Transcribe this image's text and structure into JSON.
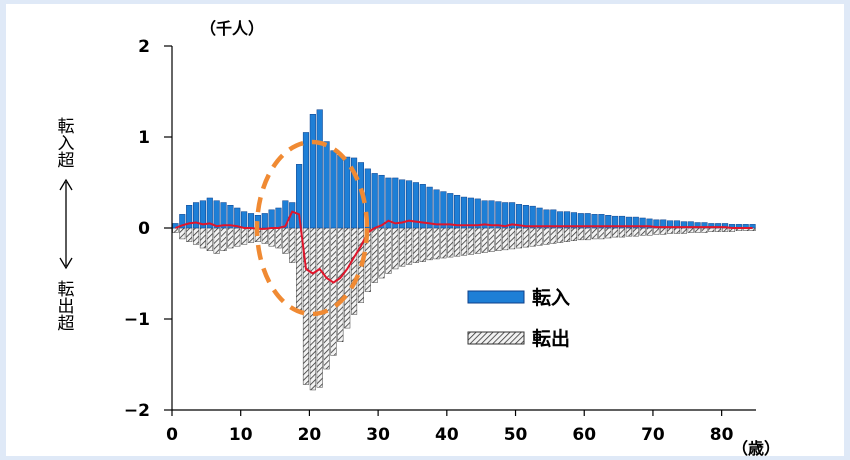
{
  "chart_data": {
    "type": "bar",
    "y_unit": "（千人）",
    "x_unit": "（歳）",
    "ylim": [
      -2,
      2
    ],
    "xlim": [
      0,
      85
    ],
    "y_ticks": [
      "2",
      "1",
      "0",
      "−1",
      "−2"
    ],
    "x_ticks": [
      "0",
      "10",
      "20",
      "30",
      "40",
      "50",
      "60",
      "70",
      "80"
    ],
    "side_label_top": [
      "転",
      "入",
      "超"
    ],
    "side_label_bottom": [
      "転",
      "出",
      "超"
    ],
    "legend": [
      {
        "label": "転入",
        "color": "#1e7fd6"
      },
      {
        "label": "転出",
        "color": "#d0d0d0"
      }
    ],
    "ages": [
      0,
      1,
      2,
      3,
      4,
      5,
      6,
      7,
      8,
      9,
      10,
      11,
      12,
      13,
      14,
      15,
      16,
      17,
      18,
      19,
      20,
      21,
      22,
      23,
      24,
      25,
      26,
      27,
      28,
      29,
      30,
      31,
      32,
      33,
      34,
      35,
      36,
      37,
      38,
      39,
      40,
      41,
      42,
      43,
      44,
      45,
      46,
      47,
      48,
      49,
      50,
      51,
      52,
      53,
      54,
      55,
      56,
      57,
      58,
      59,
      60,
      61,
      62,
      63,
      64,
      65,
      66,
      67,
      68,
      69,
      70,
      71,
      72,
      73,
      74,
      75,
      76,
      77,
      78,
      79,
      80,
      81,
      82,
      83,
      84
    ],
    "series": [
      {
        "name": "転入",
        "values": [
          0.05,
          0.15,
          0.25,
          0.28,
          0.3,
          0.33,
          0.3,
          0.28,
          0.25,
          0.22,
          0.18,
          0.16,
          0.14,
          0.16,
          0.2,
          0.22,
          0.3,
          0.28,
          0.7,
          1.05,
          1.25,
          1.3,
          0.95,
          0.85,
          0.8,
          0.78,
          0.77,
          0.72,
          0.65,
          0.6,
          0.58,
          0.55,
          0.55,
          0.53,
          0.52,
          0.5,
          0.48,
          0.45,
          0.42,
          0.4,
          0.38,
          0.36,
          0.34,
          0.33,
          0.32,
          0.3,
          0.3,
          0.29,
          0.28,
          0.28,
          0.26,
          0.25,
          0.24,
          0.22,
          0.2,
          0.2,
          0.18,
          0.18,
          0.17,
          0.16,
          0.16,
          0.15,
          0.15,
          0.14,
          0.13,
          0.13,
          0.12,
          0.12,
          0.11,
          0.1,
          0.09,
          0.09,
          0.08,
          0.08,
          0.07,
          0.07,
          0.06,
          0.06,
          0.05,
          0.05,
          0.05,
          0.04,
          0.04,
          0.04,
          0.04
        ]
      },
      {
        "name": "転出",
        "values": [
          -0.05,
          -0.12,
          -0.15,
          -0.18,
          -0.22,
          -0.25,
          -0.28,
          -0.25,
          -0.22,
          -0.2,
          -0.18,
          -0.16,
          -0.15,
          -0.17,
          -0.2,
          -0.22,
          -0.28,
          -0.38,
          -0.9,
          -1.72,
          -1.78,
          -1.75,
          -1.55,
          -1.4,
          -1.25,
          -1.1,
          -0.95,
          -0.82,
          -0.7,
          -0.6,
          -0.55,
          -0.5,
          -0.45,
          -0.42,
          -0.4,
          -0.38,
          -0.37,
          -0.35,
          -0.34,
          -0.33,
          -0.32,
          -0.31,
          -0.3,
          -0.29,
          -0.28,
          -0.27,
          -0.26,
          -0.25,
          -0.24,
          -0.23,
          -0.22,
          -0.21,
          -0.2,
          -0.19,
          -0.18,
          -0.17,
          -0.16,
          -0.15,
          -0.14,
          -0.13,
          -0.13,
          -0.12,
          -0.12,
          -0.11,
          -0.1,
          -0.1,
          -0.09,
          -0.09,
          -0.08,
          -0.08,
          -0.07,
          -0.07,
          -0.06,
          -0.06,
          -0.06,
          -0.05,
          -0.05,
          -0.05,
          -0.04,
          -0.04,
          -0.04,
          -0.04,
          -0.03,
          -0.03,
          -0.03
        ]
      },
      {
        "name": "net",
        "values": [
          0,
          0.03,
          0.05,
          0.06,
          0.04,
          0.05,
          0.02,
          0.03,
          0.03,
          0.02,
          0,
          0,
          -0.01,
          -0.01,
          0,
          0,
          0.02,
          0.18,
          0.15,
          -0.45,
          -0.5,
          -0.45,
          -0.55,
          -0.6,
          -0.55,
          -0.45,
          -0.32,
          -0.2,
          -0.05,
          0,
          0.03,
          0.08,
          0.05,
          0.06,
          0.08,
          0.07,
          0.06,
          0.05,
          0.04,
          0.04,
          0.04,
          0.03,
          0.03,
          0.03,
          0.03,
          0.04,
          0.03,
          0.03,
          0.02,
          0.04,
          0.03,
          0.02,
          0.02,
          0.02,
          0.02,
          0.02,
          0.02,
          0.02,
          0.02,
          0.02,
          0.02,
          0.02,
          0.02,
          0.02,
          0.02,
          0.02,
          0.02,
          0.02,
          0.02,
          0.02,
          0.01,
          0.01,
          0.01,
          0.01,
          0.01,
          0.01,
          0.01,
          0.01,
          0.01,
          0.01,
          0.01,
          0,
          0,
          0,
          0
        ]
      }
    ],
    "colors": {
      "in": "#1e7fd6",
      "out_stroke": "#333333",
      "net": "#e0152b",
      "highlight": "#f08a33"
    }
  }
}
